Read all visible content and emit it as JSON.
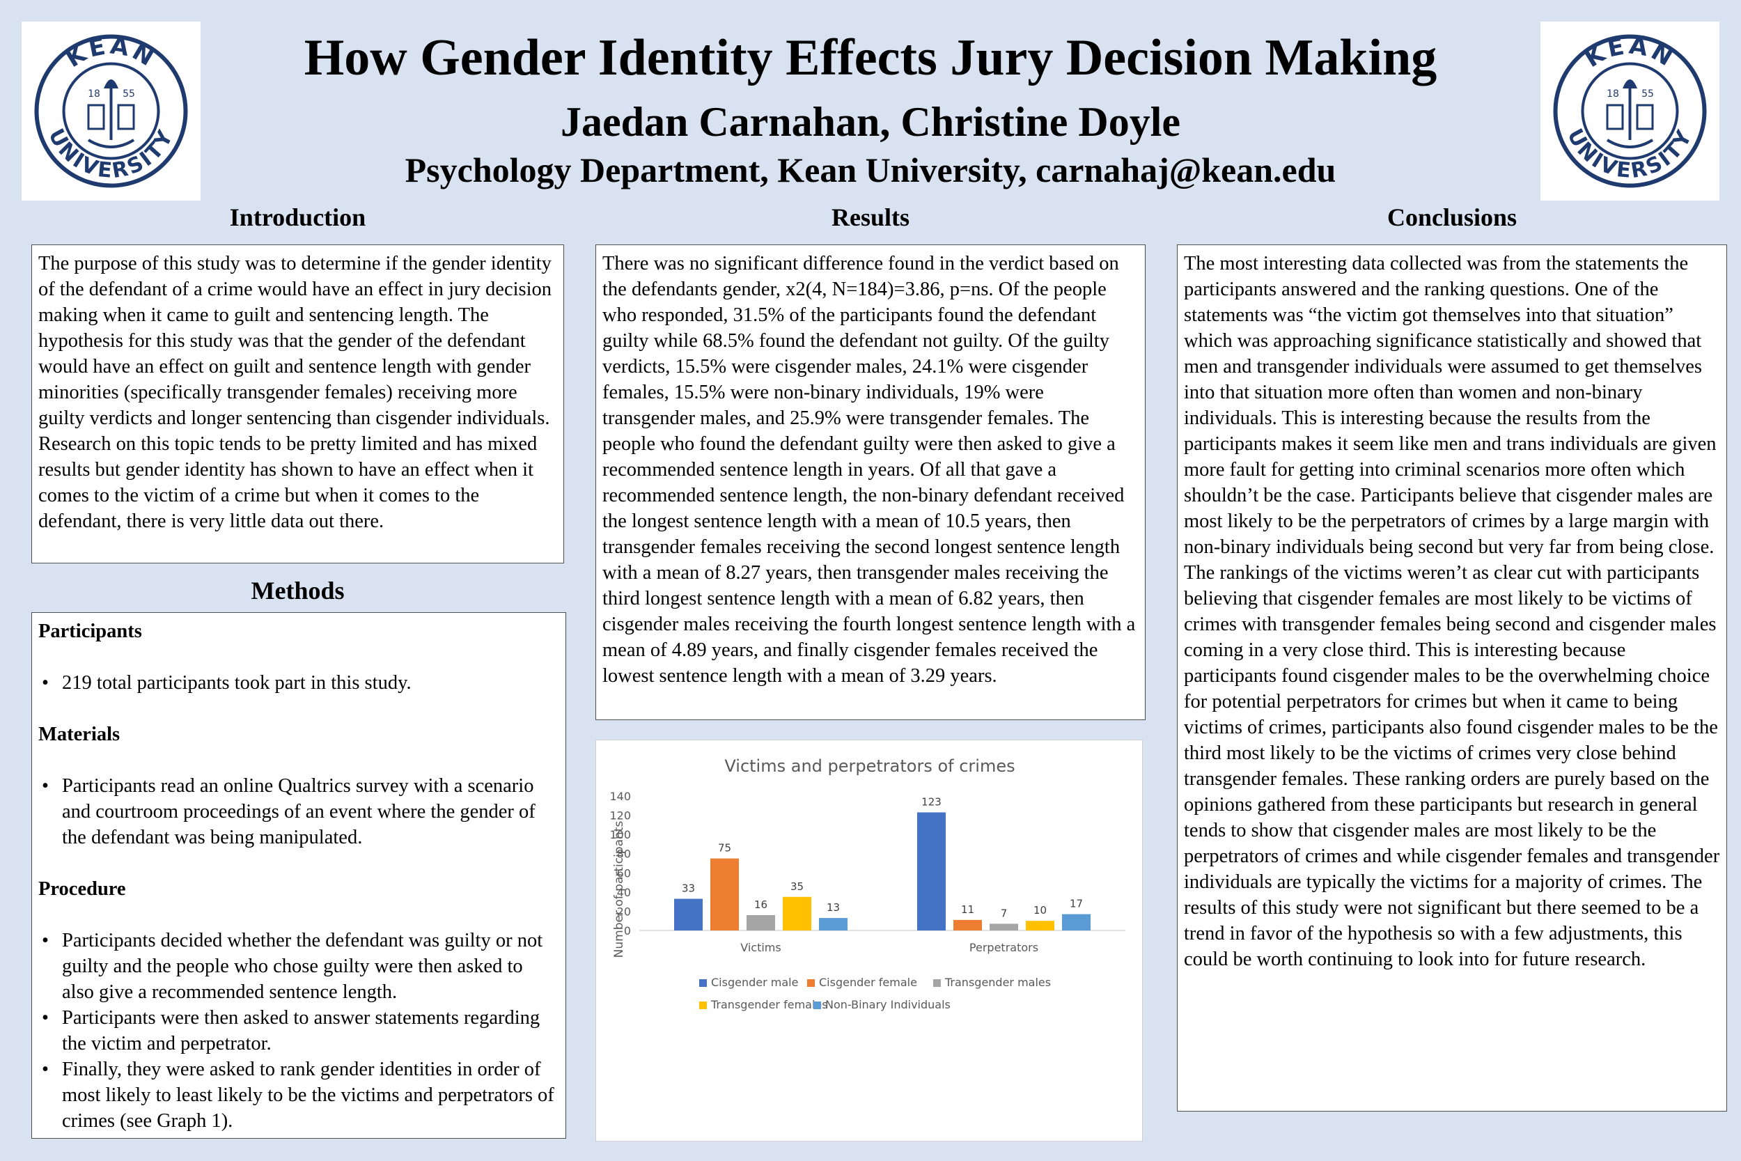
{
  "header": {
    "title": "How Gender Identity Effects Jury Decision Making",
    "authors": "Jaedan Carnahan, Christine Doyle",
    "department": "Psychology Department, Kean University, carnahaj@kean.edu"
  },
  "logo": {
    "text": "KEAN UNIVERSITY",
    "year_left": "18",
    "year_right": "55",
    "color": "#1f3a6e"
  },
  "introduction": {
    "heading": "Introduction",
    "text": "The purpose of this study was to determine if the gender identity of the defendant of a crime would have an effect in jury decision making when it came to guilt and sentencing length. The hypothesis for this study was that the gender of the defendant would have an effect on guilt and sentence length with gender minorities (specifically transgender females) receiving more guilty verdicts and longer sentencing than cisgender individuals. Research on this topic tends to be pretty limited and has mixed results but gender identity has shown to have an effect when it comes to the victim of a crime but when it comes to the defendant, there is very little data out there."
  },
  "methods": {
    "heading": "Methods",
    "participants_label": "Participants",
    "participants_items": [
      "219 total participants took part in this study."
    ],
    "materials_label": "Materials",
    "materials_items": [
      "Participants read an online Qualtrics survey with a scenario and courtroom proceedings of an event where the gender of the defendant was being manipulated."
    ],
    "procedure_label": "Procedure",
    "procedure_items": [
      "Participants decided whether the defendant was guilty or not guilty and the people who chose guilty were then asked to also give a recommended sentence length.",
      "Participants were then asked to answer statements regarding the victim and perpetrator.",
      "Finally, they were asked to rank gender identities in order of most likely to least likely to be the victims and perpetrators of crimes (see Graph 1)."
    ]
  },
  "results": {
    "heading": "Results",
    "text": "There was no significant difference found in the verdict based on the defendants gender, x2(4, N=184)=3.86, p=ns. Of the people who responded, 31.5% of the participants found the defendant guilty while 68.5% found the defendant not guilty. Of the  guilty verdicts, 15.5% were cisgender males, 24.1% were cisgender females, 15.5%  were non-binary individuals, 19% were transgender males, and 25.9% were transgender females. The people who found the defendant guilty were then asked to give a recommended sentence length in years. Of all that gave a recommended sentence length, the non-binary defendant received the longest sentence length with a mean of 10.5 years, then transgender females receiving the second longest sentence length with a mean of 8.27 years, then transgender males receiving the third longest sentence length with a mean of 6.82 years, then cisgender males receiving the fourth longest sentence length with a mean of 4.89 years, and finally cisgender females received the lowest sentence length with a mean of 3.29 years."
  },
  "conclusions": {
    "heading": "Conclusions",
    "text": "The most interesting data collected was from the statements the participants answered and the ranking questions. One of the statements was “the victim got themselves into that situation” which was approaching significance statistically and showed that men and transgender individuals were assumed to get themselves into that situation more often than women and non-binary individuals. This is interesting because the results from the participants makes it seem like men and trans individuals are given more fault for getting into criminal scenarios more often which shouldn’t be the case. Participants believe that cisgender males are most likely to be the perpetrators of crimes by a large margin with non-binary individuals being second but very far from being close. The rankings of the victims weren’t as clear cut with participants believing that cisgender females are most likely to be victims of crimes with transgender females being second and cisgender males coming in a very close third. This is interesting because participants found cisgender males to be the overwhelming choice for potential perpetrators for crimes but when it came to being victims of crimes, participants also found cisgender males to be the third most likely to be the victims of crimes very close behind transgender females. These ranking orders are purely based on the opinions gathered from these participants but research in general tends to show that cisgender males are most likely to be the perpetrators of crimes and while cisgender females and transgender individuals are typically the victims for a majority of crimes. The results of this study were not significant but there seemed to be a trend in favor of the hypothesis so with a few adjustments, this could be worth continuing to look into for future research."
  },
  "chart_data": {
    "type": "bar",
    "title": "Victims and perpetrators of crimes",
    "xlabel": "",
    "ylabel": "Number of participants",
    "categories": [
      "Victims",
      "Perpetrators"
    ],
    "ylim": [
      0,
      140
    ],
    "yticks": [
      0,
      20,
      40,
      60,
      80,
      100,
      120,
      140
    ],
    "grid": false,
    "legend_position": "bottom",
    "series": [
      {
        "name": "Cisgender male",
        "values": [
          33,
          123
        ],
        "color": "#4472c4"
      },
      {
        "name": "Cisgender female",
        "values": [
          75,
          11
        ],
        "color": "#ed7d31"
      },
      {
        "name": "Transgender males",
        "values": [
          16,
          7
        ],
        "color": "#a5a5a5"
      },
      {
        "name": "Transgender females",
        "values": [
          35,
          10
        ],
        "color": "#ffc000"
      },
      {
        "name": "Non-Binary Individuals",
        "values": [
          13,
          17
        ],
        "color": "#5b9bd5"
      }
    ]
  }
}
